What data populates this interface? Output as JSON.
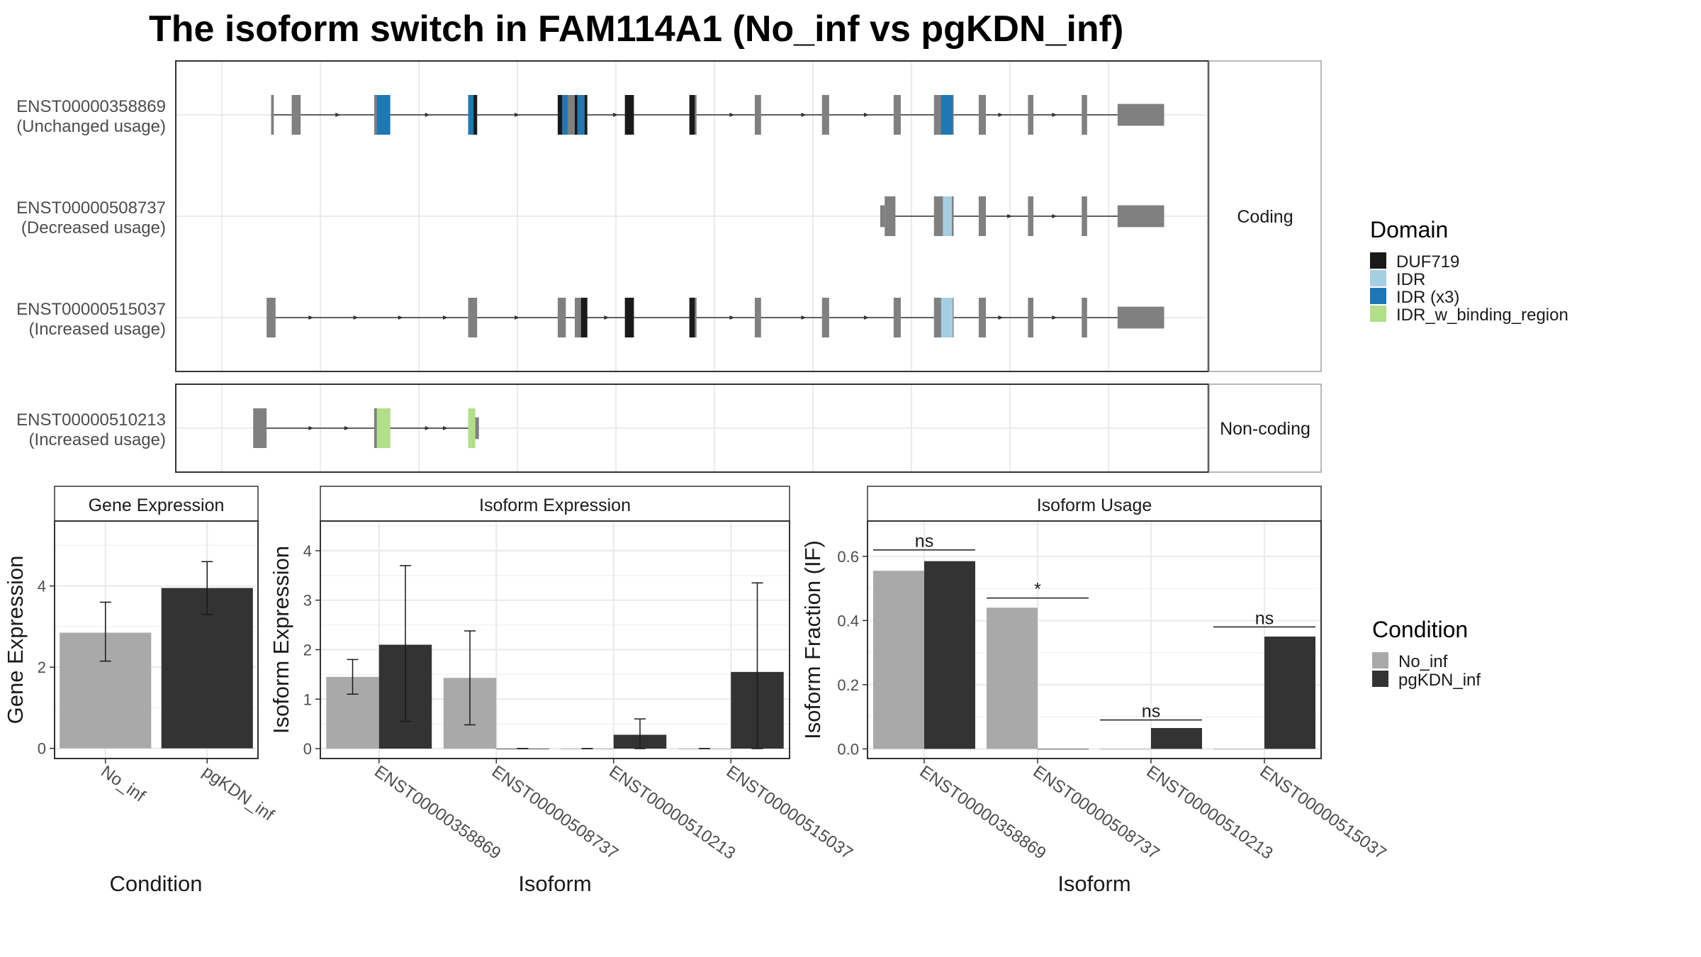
{
  "title": "The isoform switch in FAM114A1 (No_inf vs pgKDN_inf)",
  "colors": {
    "exon": "#808080",
    "DUF719": "#1a1a1a",
    "IDR": "#a6cee3",
    "IDR (x3)": "#1f78b4",
    "IDR_w_binding_region": "#b2df8a",
    "No_inf": "#a9a9a9",
    "pgKDN_inf": "#333333",
    "grid": "#ebebeb",
    "panel_border": "#333333",
    "strip_border": "#a0a0a0"
  },
  "structure": {
    "facets": [
      "Coding",
      "Non-coding"
    ],
    "genomic_axis": [
      0,
      100
    ],
    "transcripts": [
      {
        "id": "ENST00000358869",
        "usage": "(Unchanged usage)",
        "facet": "Coding",
        "exons": [
          [
            5.5,
            5.8
          ],
          [
            7.8,
            8.8
          ],
          [
            17.0,
            18.8
          ],
          [
            27.5,
            28.5
          ],
          [
            37.5,
            40.8
          ],
          [
            45.0,
            46.0
          ],
          [
            52.2,
            53.0
          ],
          [
            59.5,
            60.2
          ],
          [
            67.0,
            67.8
          ],
          [
            75.0,
            75.8
          ],
          [
            79.5,
            81.7
          ],
          [
            84.5,
            85.3
          ],
          [
            90.0,
            90.6
          ],
          [
            96.0,
            96.6
          ],
          [
            100.0,
            105.2
          ]
        ],
        "domains": [
          {
            "domain": "IDR (x3)",
            "start": 17.3,
            "end": 18.8
          },
          {
            "domain": "IDR (x3)",
            "start": 27.5,
            "end": 28.1
          },
          {
            "domain": "DUF719",
            "start": 28.1,
            "end": 28.5
          },
          {
            "domain": "DUF719",
            "start": 37.5,
            "end": 38.0
          },
          {
            "domain": "IDR (x3)",
            "start": 38.0,
            "end": 38.6
          },
          {
            "domain": "DUF719",
            "start": 39.4,
            "end": 39.7
          },
          {
            "domain": "IDR (x3)",
            "start": 39.7,
            "end": 40.5
          },
          {
            "domain": "DUF719",
            "start": 40.5,
            "end": 40.8
          },
          {
            "domain": "DUF719",
            "start": 45.0,
            "end": 46.0
          },
          {
            "domain": "DUF719",
            "start": 52.2,
            "end": 52.8
          },
          {
            "domain": "IDR (x3)",
            "start": 80.3,
            "end": 81.6
          }
        ],
        "arrows": [
          13,
          23,
          33,
          44,
          57,
          65,
          72,
          87,
          93
        ]
      },
      {
        "id": "ENST00000508737",
        "usage": "(Decreased usage)",
        "facet": "Coding",
        "exons": [
          [
            73.5,
            74.0
          ],
          [
            74.0,
            75.2
          ],
          [
            79.5,
            81.7
          ],
          [
            84.5,
            85.3
          ],
          [
            90.0,
            90.6
          ],
          [
            96.0,
            96.6
          ],
          [
            100.0,
            105.2
          ]
        ],
        "domains": [
          {
            "domain": "IDR",
            "start": 80.5,
            "end": 81.5
          }
        ],
        "arrows": [
          88,
          93
        ]
      },
      {
        "id": "ENST00000515037",
        "usage": "(Increased usage)",
        "facet": "Coding",
        "exons": [
          [
            5.0,
            6.0
          ],
          [
            27.5,
            28.5
          ],
          [
            37.5,
            38.4
          ],
          [
            39.4,
            40.8
          ],
          [
            45.0,
            46.0
          ],
          [
            52.2,
            53.0
          ],
          [
            59.5,
            60.2
          ],
          [
            67.0,
            67.8
          ],
          [
            75.0,
            75.8
          ],
          [
            79.5,
            81.7
          ],
          [
            84.5,
            85.3
          ],
          [
            90.0,
            90.6
          ],
          [
            96.0,
            96.6
          ],
          [
            100.0,
            105.2
          ]
        ],
        "domains": [
          {
            "domain": "DUF719",
            "start": 40.1,
            "end": 40.8
          },
          {
            "domain": "DUF719",
            "start": 45.0,
            "end": 46.0
          },
          {
            "domain": "DUF719",
            "start": 52.2,
            "end": 52.8
          },
          {
            "domain": "IDR",
            "start": 80.3,
            "end": 81.6
          }
        ],
        "arrows": [
          10,
          15,
          20,
          25,
          33,
          43,
          57,
          65,
          72,
          87,
          93
        ]
      },
      {
        "id": "ENST00000510213",
        "usage": "(Increased usage)",
        "facet": "Non-coding",
        "exons": [
          [
            3.5,
            5.0
          ],
          [
            17.0,
            18.8
          ],
          [
            27.5,
            28.7
          ]
        ],
        "domains": [
          {
            "domain": "IDR_w_binding_region",
            "start": 17.3,
            "end": 18.8
          },
          {
            "domain": "IDR_w_binding_region",
            "start": 27.5,
            "end": 28.3
          }
        ],
        "arrows": [
          10,
          14,
          23,
          25
        ]
      }
    ]
  },
  "legends": {
    "domain": {
      "title": "Domain",
      "items": [
        "DUF719",
        "IDR",
        "IDR (x3)",
        "IDR_w_binding_region"
      ]
    },
    "condition": {
      "title": "Condition",
      "items": [
        "No_inf",
        "pgKDN_inf"
      ]
    }
  },
  "chart_data": [
    {
      "type": "bar",
      "title": "Gene Expression",
      "xlabel": "Condition",
      "ylabel": "Gene Expression",
      "categories": [
        "No_inf",
        "pgKDN_inf"
      ],
      "values": [
        2.85,
        3.95
      ],
      "error_low": [
        2.15,
        3.3
      ],
      "error_high": [
        3.6,
        4.6
      ],
      "ylim": [
        -0.25,
        5.6
      ],
      "yticks": [
        0,
        2,
        4
      ]
    },
    {
      "type": "bar",
      "title": "Isoform Expression",
      "xlabel": "Isoform",
      "ylabel": "Isoform Expression",
      "categories": [
        "ENST00000358869",
        "ENST00000508737",
        "ENST00000510213",
        "ENST00000515037"
      ],
      "series": [
        {
          "name": "No_inf",
          "values": [
            1.45,
            1.43,
            0.0,
            0.0
          ],
          "error_low": [
            1.1,
            0.48,
            0.0,
            0.0
          ],
          "error_high": [
            1.8,
            2.38,
            0.0,
            0.0
          ]
        },
        {
          "name": "pgKDN_inf",
          "values": [
            2.1,
            0.0,
            0.28,
            1.55
          ],
          "error_low": [
            0.55,
            0.0,
            0.0,
            0.0
          ],
          "error_high": [
            3.7,
            0.0,
            0.6,
            3.35
          ]
        }
      ],
      "ylim": [
        -0.2,
        4.6
      ],
      "yticks": [
        0,
        1,
        2,
        3,
        4
      ]
    },
    {
      "type": "bar",
      "title": "Isoform Usage",
      "xlabel": "Isoform",
      "ylabel": "Isoform Fraction (IF)",
      "categories": [
        "ENST00000358869",
        "ENST00000508737",
        "ENST00000510213",
        "ENST00000515037"
      ],
      "series": [
        {
          "name": "No_inf",
          "values": [
            0.555,
            0.44,
            0.0,
            0.0
          ]
        },
        {
          "name": "pgKDN_inf",
          "values": [
            0.585,
            0.0,
            0.065,
            0.35
          ]
        }
      ],
      "significance": [
        "ns",
        "*",
        "ns",
        "ns"
      ],
      "sig_level": [
        0.62,
        0.47,
        0.09,
        0.38
      ],
      "ylim": [
        -0.03,
        0.71
      ],
      "yticks": [
        0.0,
        0.2,
        0.4,
        0.6
      ]
    }
  ]
}
